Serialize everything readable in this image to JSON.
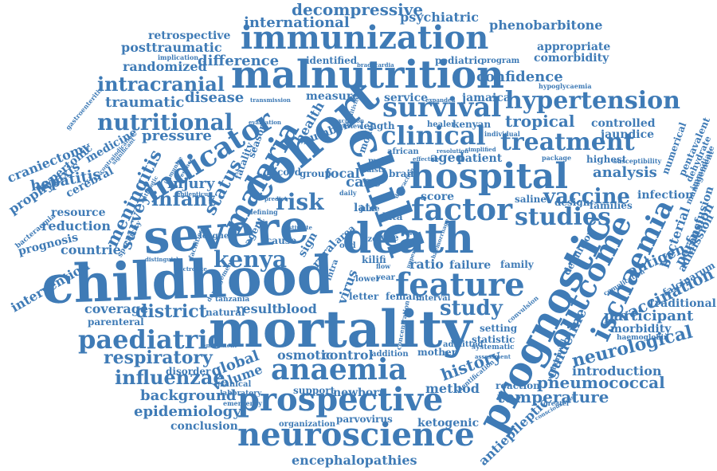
{
  "accent_color": "#3f7bb6",
  "background_color": "#ffffff",
  "words": [
    "childhood",
    "mortality",
    "severe",
    "cohort",
    "malnutrition",
    "immunization",
    "prognostic",
    "child",
    "death",
    "hospital",
    "neuroscience",
    "prospective",
    "anaemia",
    "feature",
    "factor",
    "malaria",
    "outcome",
    "ischaemia",
    "hypertension",
    "indicator",
    "survival",
    "clinical",
    "treatment",
    "paediatric",
    "studies",
    "kenya",
    "risk",
    "study",
    "vaccine",
    "nutritional",
    "intracranial",
    "influenzae",
    "respiratory",
    "district",
    "neurological",
    "vaccination",
    "temperature",
    "pneumococcal",
    "introduction",
    "encephalopathies",
    "epidemiology",
    "background",
    "coverage",
    "global",
    "volume",
    "history",
    "method",
    "control",
    "osmotic",
    "meningitis",
    "survey",
    "infant",
    "status",
    "injury",
    "hepatitis",
    "reduction",
    "resource",
    "countrie",
    "prognosis",
    "intervention",
    "craniectomy",
    "prophylaxis",
    "hypertonic",
    "cerebral",
    "traumatic",
    "disease",
    "pressure",
    "difference",
    "randomized",
    "posttraumatic",
    "retrospective",
    "international",
    "decompressive",
    "psychiatric",
    "phenobarbitone",
    "appropriate",
    "comorbidity",
    "confidence",
    "tropical",
    "controlled",
    "jaundice",
    "analysis",
    "highest",
    "infection",
    "families",
    "bacterial",
    "perfusion",
    "admission",
    "transfusion",
    "antigen",
    "participant",
    "morbidity",
    "traditional",
    "falciparum",
    "guideline",
    "antiepileptic",
    "reaction",
    "ketogenic",
    "parvovirus",
    "organization",
    "newborn",
    "support",
    "conclusion",
    "disorder",
    "result",
    "blood",
    "natural",
    "parenteral",
    "statistic",
    "setting",
    "definition",
    "design",
    "saline",
    "score",
    "aged",
    "patient",
    "case",
    "focal",
    "group",
    "record",
    "fatality",
    "season",
    "health",
    "number",
    "measure",
    "identified",
    "pediatric",
    "program",
    "service",
    "jamaica",
    "kenyan",
    "healer",
    "length",
    "african",
    "brain",
    "model",
    "ratio",
    "failure",
    "family",
    "letter",
    "female",
    "interval",
    "admitted",
    "mother",
    "addition",
    "late",
    "data",
    "june",
    "type",
    "sign",
    "rural",
    "cause",
    "league",
    "agent",
    "tanzania",
    "cranical",
    "laboratory",
    "numerical",
    "pentavalent",
    "dehydrate",
    "immediate",
    "management",
    "hypoglycaemia",
    "susceptibility",
    "package",
    "greater",
    "haemoglobin",
    "systematic",
    "assessment",
    "concentration",
    "implication",
    "bradycardia",
    "transmission",
    "expanded",
    "sensitivity",
    "individual",
    "gastroenteritis",
    "bacteraemia",
    "specificity",
    "distinguish",
    "derangement",
    "enrollment",
    "emergency",
    "electrolyte",
    "contraindication",
    "significant",
    "predict",
    "defining",
    "facilities",
    "effective",
    "complication",
    "consciousness",
    "withdrawal",
    "convulsion",
    "identification",
    "kilifi",
    "lower",
    "virus",
    "intra",
    "odd",
    "size",
    "area",
    "test",
    "male",
    "distr",
    "distraction",
    "upper",
    "simplified",
    "resolution",
    "exclusion",
    "review",
    "daily",
    "immunize",
    "presence",
    "epilepticus",
    "evaluation",
    "estimate",
    "medicine",
    "antibiotic",
    "haemorrhage",
    "flow",
    "year"
  ]
}
